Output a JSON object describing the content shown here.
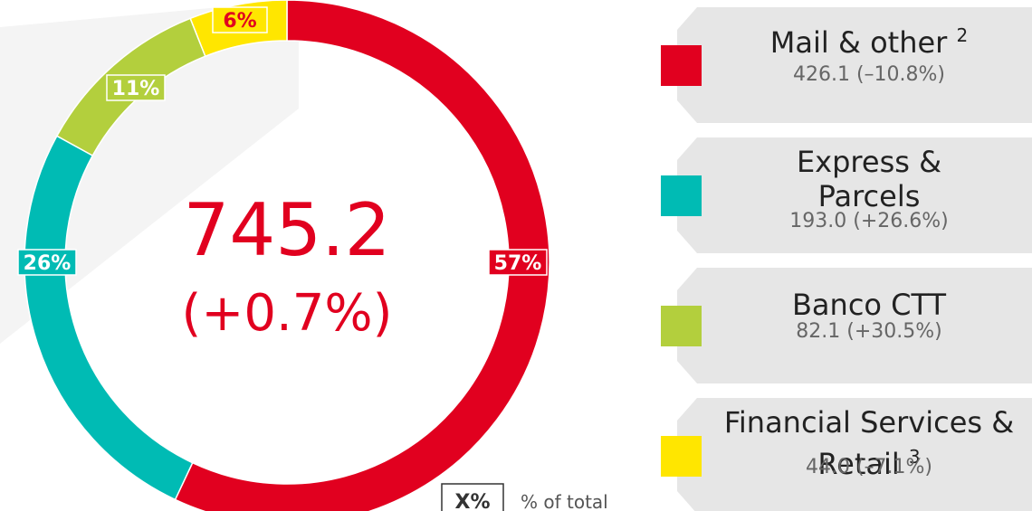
{
  "chart_data": {
    "type": "pie",
    "donut": true,
    "center_value": "745.2",
    "center_change": "(+0.7%)",
    "categories": [
      "Mail & other",
      "Express & Parcels",
      "Banco CTT",
      "Financial Services & Retail"
    ],
    "footnotes": [
      "2",
      null,
      null,
      "3"
    ],
    "values": [
      57,
      26,
      11,
      6
    ],
    "value_labels": [
      "57%",
      "26%",
      "11%",
      "6%"
    ],
    "details": [
      "426.1 (–10.8%)",
      "193.0 (+26.6%)",
      "82.1 (+30.5%)",
      "44.0 (–7.1%)"
    ],
    "colors": [
      "#e1001f",
      "#00bbb4",
      "#b3cf3d",
      "#ffe600"
    ],
    "label_text_colors": [
      "#ffffff",
      "#ffffff",
      "#ffffff",
      "#e1001f"
    ],
    "key": {
      "symbol": "X%",
      "text": "% of total"
    }
  }
}
